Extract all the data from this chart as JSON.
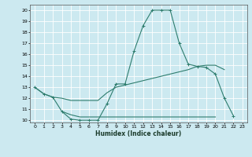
{
  "xlabel": "Humidex (Indice chaleur)",
  "background_color": "#cce9f0",
  "grid_color": "#ffffff",
  "line_color": "#2e7d6e",
  "xlim": [
    -0.5,
    23.5
  ],
  "ylim": [
    9.8,
    20.5
  ],
  "xticks": [
    0,
    1,
    2,
    3,
    4,
    5,
    6,
    7,
    8,
    9,
    10,
    11,
    12,
    13,
    14,
    15,
    16,
    17,
    18,
    19,
    20,
    21,
    22,
    23
  ],
  "yticks": [
    10,
    11,
    12,
    13,
    14,
    15,
    16,
    17,
    18,
    19,
    20
  ],
  "line1_x": [
    0,
    1,
    2,
    3,
    4,
    5,
    6,
    7,
    8,
    9,
    10,
    11,
    12,
    13,
    14,
    15,
    16,
    17,
    18,
    19,
    20,
    21,
    22
  ],
  "line1_y": [
    13.0,
    12.4,
    12.1,
    10.8,
    10.1,
    10.0,
    10.0,
    10.0,
    11.5,
    13.3,
    13.3,
    16.3,
    18.6,
    20.0,
    20.0,
    20.0,
    17.0,
    15.1,
    14.9,
    14.8,
    14.2,
    12.0,
    10.4
  ],
  "line2_x": [
    0,
    1,
    2,
    3,
    4,
    5,
    6,
    7,
    8,
    9,
    10,
    11,
    12,
    13,
    14,
    15,
    16,
    17,
    18,
    19,
    20,
    21
  ],
  "line2_y": [
    13.0,
    12.4,
    12.1,
    12.0,
    11.8,
    11.8,
    11.8,
    11.8,
    12.5,
    13.0,
    13.2,
    13.4,
    13.6,
    13.8,
    14.0,
    14.2,
    14.4,
    14.6,
    14.9,
    15.0,
    15.0,
    14.6
  ],
  "line3_x": [
    3,
    4,
    5,
    6,
    7,
    8,
    9,
    10,
    11,
    12,
    13,
    14,
    15,
    16,
    17,
    18,
    19,
    20
  ],
  "line3_y": [
    10.8,
    10.5,
    10.3,
    10.3,
    10.3,
    10.3,
    10.3,
    10.3,
    10.3,
    10.3,
    10.3,
    10.3,
    10.3,
    10.3,
    10.3,
    10.3,
    10.3,
    10.3
  ]
}
